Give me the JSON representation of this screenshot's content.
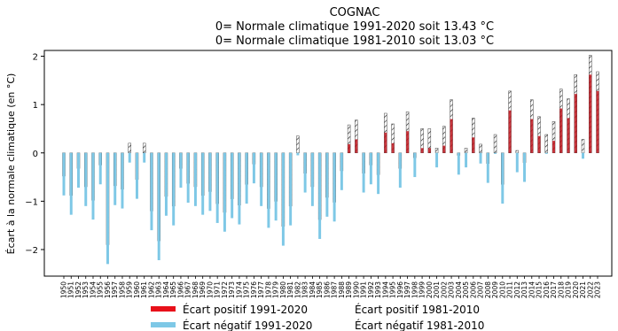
{
  "chart_data": {
    "type": "bar",
    "title_lines": [
      "COGNAC",
      "0= Normale climatique 1991-2020 soit 13.43 °C",
      "0= Normale climatique 1981-2010 soit 13.03 °C"
    ],
    "xlabel": "",
    "ylabel": "Écart à la normale climatique (en °C)",
    "ylim": [
      -2.55,
      2.12
    ],
    "yticks": [
      -2,
      -1,
      0,
      1,
      2
    ],
    "grid": false,
    "legend_position": "bottom",
    "legend": [
      {
        "label": "Écart positif 1991-2020",
        "color": "#e8101a",
        "style": "solid"
      },
      {
        "label": "Écart positif 1981-2010",
        "color": "#8b1a1a",
        "style": "hatched"
      },
      {
        "label": "Écart négatif 1991-2020",
        "color": "#7ec8e6",
        "style": "solid"
      },
      {
        "label": "Écart négatif 1981-2010",
        "color": "#a9d6e8",
        "style": "hatched"
      }
    ],
    "categories": [
      "1950",
      "1951",
      "1952",
      "1953",
      "1954",
      "1955",
      "1956",
      "1957",
      "1958",
      "1959",
      "1960",
      "1961",
      "1962",
      "1963",
      "1964",
      "1965",
      "1966",
      "1967",
      "1968",
      "1969",
      "1970",
      "1971",
      "1972",
      "1973",
      "1974",
      "1975",
      "1976",
      "1977",
      "1978",
      "1979",
      "1980",
      "1981",
      "1982",
      "1983",
      "1984",
      "1985",
      "1986",
      "1987",
      "1988",
      "1989",
      "1990",
      "1991",
      "1992",
      "1993",
      "1994",
      "1995",
      "1996",
      "1997",
      "1998",
      "1999",
      "2000",
      "2001",
      "2002",
      "2003",
      "2004",
      "2005",
      "2006",
      "2007",
      "2008",
      "2009",
      "2010",
      "2011",
      "2012",
      "2013",
      "2014",
      "2015",
      "2016",
      "2017",
      "2018",
      "2019",
      "2020",
      "2021",
      "2022",
      "2023"
    ],
    "series": [
      {
        "name": "Écart 1991-2020",
        "values": [
          -0.88,
          -1.28,
          -0.72,
          -1.1,
          -1.38,
          -0.65,
          -2.3,
          -1.08,
          -1.15,
          -0.2,
          -0.95,
          -0.2,
          -1.6,
          -2.22,
          -1.3,
          -1.5,
          -0.72,
          -1.03,
          -1.1,
          -1.28,
          -1.2,
          -1.45,
          -1.63,
          -1.35,
          -1.48,
          -1.05,
          -0.63,
          -1.1,
          -1.55,
          -1.4,
          -1.92,
          -1.5,
          -0.05,
          -0.82,
          -1.1,
          -1.78,
          -1.32,
          -1.42,
          -0.77,
          0.18,
          0.28,
          -0.82,
          -0.65,
          -0.85,
          0.42,
          0.2,
          -0.72,
          0.45,
          -0.5,
          0.1,
          0.1,
          -0.3,
          0.15,
          0.7,
          -0.45,
          -0.3,
          0.32,
          -0.22,
          -0.62,
          -0.02,
          -1.05,
          0.88,
          -0.4,
          -0.6,
          0.7,
          0.35,
          -0.02,
          0.25,
          0.92,
          0.72,
          1.22,
          -0.12,
          1.62,
          1.28
        ]
      },
      {
        "name": "Écart 1981-2010",
        "values": [
          -0.48,
          -0.88,
          -0.32,
          -0.7,
          -0.98,
          -0.25,
          -1.9,
          -0.68,
          -0.75,
          0.2,
          -0.55,
          0.2,
          -1.2,
          -1.82,
          -0.9,
          -1.1,
          -0.32,
          -0.63,
          -0.7,
          -0.88,
          -0.8,
          -1.05,
          -1.23,
          -0.95,
          -1.08,
          -0.65,
          -0.23,
          -0.7,
          -1.15,
          -1.0,
          -1.52,
          -1.1,
          0.35,
          -0.42,
          -0.7,
          -1.38,
          -0.92,
          -1.02,
          -0.37,
          0.58,
          0.68,
          -0.42,
          -0.25,
          -0.45,
          0.82,
          0.6,
          -0.32,
          0.85,
          -0.1,
          0.5,
          0.5,
          0.1,
          0.55,
          1.1,
          -0.05,
          0.1,
          0.72,
          0.18,
          -0.22,
          0.38,
          -0.65,
          1.28,
          0.05,
          -0.2,
          1.1,
          0.75,
          0.38,
          0.65,
          1.32,
          1.12,
          1.62,
          0.28,
          2.02,
          1.68
        ]
      }
    ]
  }
}
